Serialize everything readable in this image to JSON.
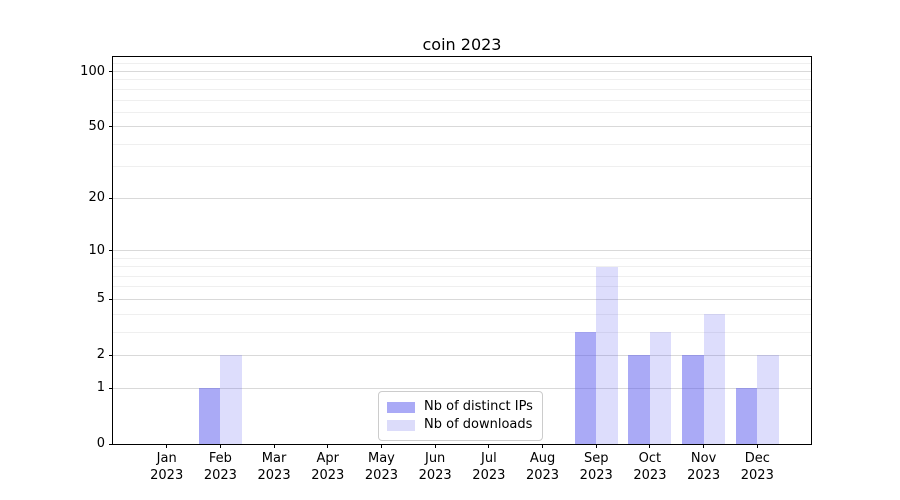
{
  "chart_data": {
    "type": "bar",
    "title": "coin 2023",
    "categories": [
      "Jan 2023",
      "Feb 2023",
      "Mar 2023",
      "Apr 2023",
      "May 2023",
      "Jun 2023",
      "Jul 2023",
      "Aug 2023",
      "Sep 2023",
      "Oct 2023",
      "Nov 2023",
      "Dec 2023"
    ],
    "series": [
      {
        "name": "Nb of distinct IPs",
        "values": [
          0,
          1,
          0,
          0,
          0,
          0,
          0,
          0,
          3,
          2,
          2,
          1
        ],
        "bar_color": "rgba(86,86,238,0.5)",
        "legend_color": "#aaaaf6"
      },
      {
        "name": "Nb of downloads",
        "values": [
          0,
          2,
          0,
          0,
          0,
          0,
          0,
          0,
          8,
          3,
          4,
          2
        ],
        "bar_color": "rgba(86,86,238,0.2)",
        "legend_color": "#dcdcfa"
      }
    ],
    "yscale": "log1p",
    "ylim": [
      0,
      120
    ],
    "yticks": [
      0,
      1,
      2,
      5,
      10,
      20,
      50,
      100
    ],
    "yticks_minor": [
      3,
      4,
      6,
      7,
      8,
      9,
      30,
      40,
      60,
      70,
      80,
      90,
      110
    ],
    "grid": true,
    "legend_position": "inside bottom-center",
    "bar_group_width_ratio": 0.8
  },
  "colors": {
    "grid_major": "#d9d9d9",
    "grid_minor": "#efefef",
    "spine": "#000000",
    "text": "#000000",
    "background": "#ffffff"
  }
}
